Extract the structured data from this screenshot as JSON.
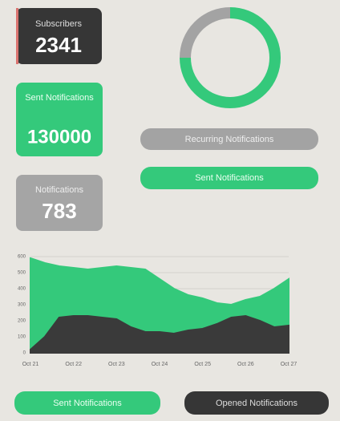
{
  "cards": [
    {
      "label": "Subscribers",
      "value": "2341"
    },
    {
      "label": "Sent Notifications",
      "value": "130000"
    },
    {
      "label": "Notifications",
      "value": "783"
    }
  ],
  "buttons": {
    "recurring": "Recurring Notifications",
    "sent": "Sent Notifications"
  },
  "legend_buttons": [
    "Sent Notifications",
    "Opened Notifications"
  ],
  "donut": {
    "type": "pie",
    "values": [
      75,
      25
    ],
    "colors": [
      "#34c97b",
      "#a3a3a3"
    ]
  },
  "chart_data": {
    "type": "area",
    "categories": [
      "Oct 21",
      null,
      null,
      "Oct 22",
      null,
      null,
      "Oct 23",
      null,
      null,
      "Oct 24",
      null,
      null,
      "Oct 25",
      null,
      null,
      "Oct 26",
      null,
      null,
      "Oct 27"
    ],
    "series": [
      {
        "name": "Sent Notifications",
        "color": "#34c97b",
        "values": [
          590,
          560,
          540,
          530,
          520,
          530,
          540,
          530,
          520,
          460,
          400,
          360,
          340,
          310,
          300,
          330,
          350,
          400,
          460
        ]
      },
      {
        "name": "Opened Notifications",
        "color": "#3a3a3a",
        "values": [
          20,
          100,
          220,
          230,
          230,
          220,
          210,
          160,
          130,
          130,
          120,
          140,
          150,
          180,
          220,
          230,
          200,
          160,
          170
        ]
      }
    ],
    "ylim": [
      0,
      600
    ],
    "yticks": [
      0,
      100,
      200,
      300,
      400,
      500,
      600
    ],
    "grid": true
  }
}
